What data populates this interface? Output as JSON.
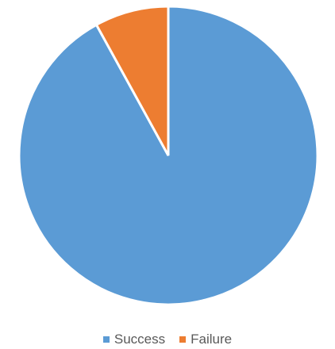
{
  "chart_data": {
    "type": "pie",
    "title": "",
    "legend_position": "bottom",
    "slices": [
      {
        "label": "Success",
        "value": 92,
        "color": "#5b9bd5"
      },
      {
        "label": "Failure",
        "value": 8,
        "color": "#ed7d31"
      }
    ]
  }
}
